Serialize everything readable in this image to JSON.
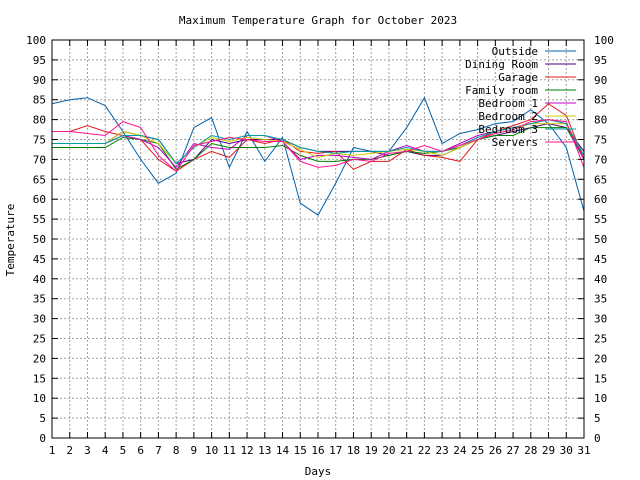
{
  "chart_data": {
    "type": "line",
    "title": "Maximum Temperature Graph for October 2023",
    "xlabel": "Days",
    "ylabel": "Temperature",
    "xlim": [
      1,
      31
    ],
    "ylim": [
      0,
      100
    ],
    "x_ticks": [
      "1",
      "2",
      "3",
      "4",
      "5",
      "6",
      "7",
      "8",
      "9",
      "10",
      "11",
      "12",
      "13",
      "14",
      "15",
      "16",
      "17",
      "18",
      "19",
      "20",
      "21",
      "22",
      "23",
      "24",
      "25",
      "26",
      "27",
      "28",
      "29",
      "30",
      "31"
    ],
    "y_ticks": [
      "0",
      "5",
      "10",
      "15",
      "20",
      "25",
      "30",
      "35",
      "40",
      "45",
      "50",
      "55",
      "60",
      "65",
      "70",
      "75",
      "80",
      "85",
      "90",
      "95",
      "100"
    ],
    "grid": true,
    "legend_position": "top-right",
    "x": [
      1,
      2,
      3,
      4,
      5,
      6,
      7,
      8,
      9,
      10,
      11,
      12,
      13,
      14,
      15,
      16,
      17,
      18,
      19,
      20,
      21,
      22,
      23,
      24,
      25,
      26,
      27,
      28,
      29,
      30,
      31
    ],
    "series": [
      {
        "name": "Outside",
        "color": "#0060ad",
        "values": [
          84,
          85,
          85.5,
          83.5,
          77,
          70,
          64,
          66.5,
          78,
          80.5,
          68,
          77,
          69.5,
          75.5,
          59,
          56,
          64,
          73,
          72,
          72,
          78,
          85.5,
          74,
          76.5,
          77.5,
          79,
          79.5,
          82.5,
          79,
          73,
          57
        ]
      },
      {
        "name": "Dining Room",
        "color": "#4b0082",
        "values": [
          74,
          74,
          74,
          74,
          77,
          76,
          75,
          69,
          70,
          75,
          74,
          75,
          75,
          75,
          73,
          72,
          72,
          72,
          72,
          71,
          72,
          71,
          71,
          73,
          75,
          76,
          77,
          78,
          79,
          78,
          72
        ]
      },
      {
        "name": "Garage",
        "color": "#e41a1c",
        "values": [
          77,
          77,
          78.5,
          77,
          76,
          75,
          70,
          67,
          70,
          72,
          70.5,
          75,
          74,
          75,
          72,
          71.5,
          72,
          67.5,
          69.5,
          69.5,
          72.5,
          71,
          70.5,
          69.5,
          75,
          77,
          78.5,
          80,
          84,
          81,
          70
        ]
      },
      {
        "name": "Family room",
        "color": "#008000",
        "values": [
          73,
          73,
          73,
          73,
          75.5,
          75,
          74,
          67.5,
          70,
          74,
          73,
          73,
          73,
          73.5,
          71,
          69.5,
          69.5,
          70,
          70,
          71,
          72,
          71.5,
          72,
          73,
          75,
          76,
          76,
          78,
          78,
          78,
          70
        ]
      },
      {
        "name": "Bedroom 1",
        "color": "#c000c0",
        "values": [
          74,
          74,
          74,
          74,
          76,
          75,
          73,
          68,
          74,
          73,
          72.5,
          76,
          76,
          74.5,
          70,
          71,
          71,
          70.5,
          70,
          72,
          73.5,
          72,
          72,
          74,
          76,
          77,
          78,
          79,
          80,
          79,
          70
        ]
      },
      {
        "name": "Bedroom 2",
        "color": "#cccc00",
        "values": [
          74,
          74,
          74,
          74,
          77,
          76,
          74,
          69,
          73,
          75.5,
          74.5,
          75.5,
          75,
          74.5,
          72.5,
          70.5,
          71.5,
          71,
          71.5,
          72,
          72.5,
          72,
          71,
          73,
          75,
          76.5,
          77.5,
          79,
          79,
          79,
          71
        ]
      },
      {
        "name": "Bedroom 3",
        "color": "#00a0a0",
        "values": [
          74,
          74,
          74,
          74,
          76,
          76,
          75,
          69,
          73,
          76,
          75,
          76,
          76,
          75,
          73,
          72,
          71.5,
          72,
          72,
          72,
          73,
          72,
          72,
          73.5,
          75.5,
          77,
          78,
          79,
          80,
          79,
          71
        ]
      },
      {
        "name": "Servers",
        "color": "#ff1493",
        "values": [
          77,
          77,
          76.5,
          76,
          79.5,
          78,
          71,
          67,
          73.5,
          74.5,
          75.5,
          75,
          74.5,
          74.5,
          69.5,
          68,
          68.5,
          70,
          69.5,
          71.5,
          72,
          73.5,
          72,
          73.5,
          75,
          76.5,
          77.5,
          79.5,
          80,
          79.5,
          68
        ]
      }
    ]
  }
}
